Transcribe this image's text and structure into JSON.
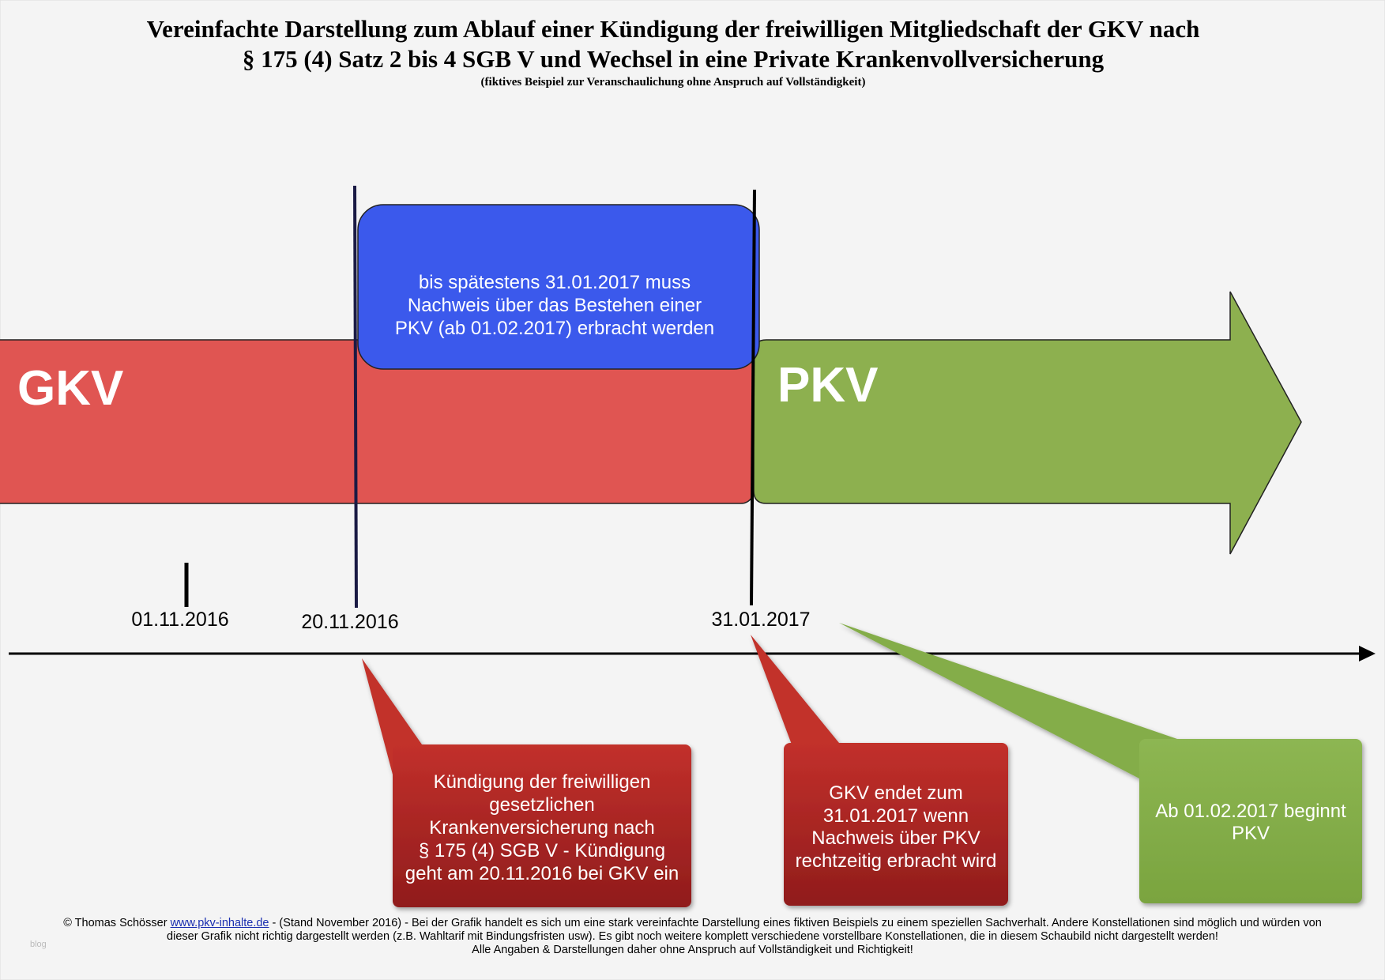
{
  "header": {
    "title": [
      "Vereinfachte Darstellung zum Ablauf einer Kündigung der freiwilligen Mitgliedschaft der GKV nach",
      "§ 175 (4) Satz 2 bis 4 SGB V und Wechsel in eine Private Krankenvollversicherung"
    ],
    "subtitle": "(fiktives Beispiel zur Veranschaulichung ohne Anspruch auf Vollständigkeit)"
  },
  "bars": [
    {
      "label": "GKV"
    },
    {
      "label": "PKV"
    }
  ],
  "info_box": {
    "lines": [
      "bis spätestens 31.01.2017 muss",
      "Nachweis über das Bestehen einer",
      "PKV (ab 01.02.2017) erbracht werden"
    ]
  },
  "dates": [
    "01.11.2016",
    "20.11.2016",
    "31.01.2017"
  ],
  "callouts": [
    {
      "lines": [
        "Kündigung der freiwilligen",
        "gesetzlichen",
        "Krankenversicherung nach",
        "§ 175 (4) SGB V - Kündigung",
        "geht am 20.11.2016 bei GKV ein"
      ]
    },
    {
      "lines": [
        "GKV endet zum",
        "31.01.2017 wenn",
        "Nachweis über PKV",
        "rechtzeitig erbracht wird"
      ]
    },
    {
      "lines": [
        "Ab 01.02.2017 beginnt",
        "PKV"
      ]
    }
  ],
  "footer": {
    "prefix": "© Thomas Schösser ",
    "link": "www.pkv-inhalte.de",
    "line1": " - (Stand November 2016) - Bei der Grafik handelt es sich um eine stark vereinfachte Darstellung eines fiktiven Beispiels zu einem speziellen Sachverhalt. Andere Konstellationen sind möglich und würden von",
    "line2": "dieser Grafik nicht richtig dargestellt werden (z.B. Wahltarif mit Bindungsfristen usw). Es gibt noch weitere komplett verschiedene vorstellbare Konstellationen, die in diesem Schaubild nicht dargestellt werden!",
    "line3": "Alle Angaben & Darstellungen daher ohne Anspruch auf Vollständigkeit und Richtigkeit!"
  },
  "watermark": "blog"
}
